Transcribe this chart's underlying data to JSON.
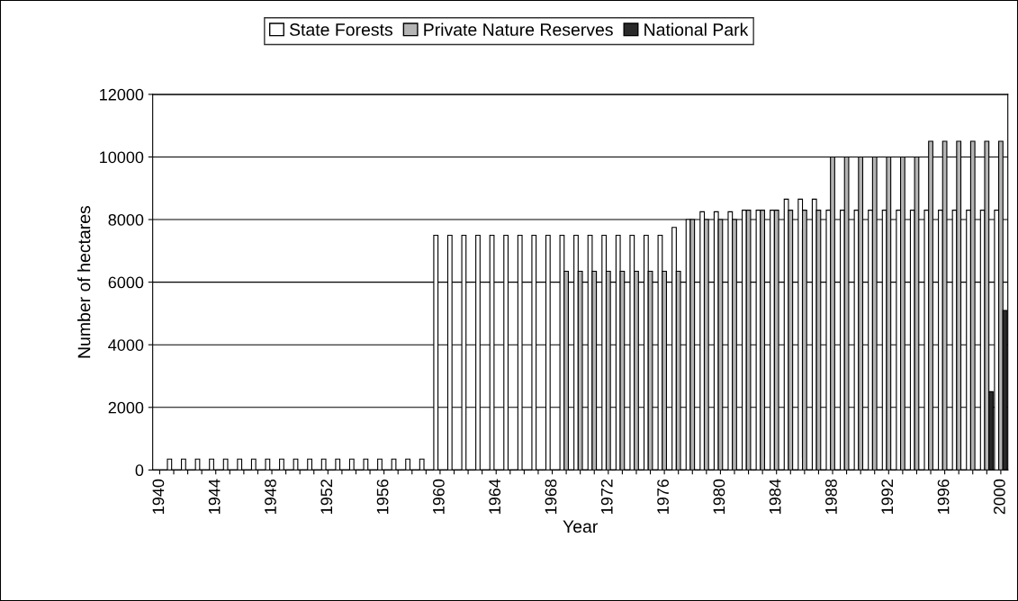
{
  "chart_data": {
    "type": "bar",
    "xlabel": "Year",
    "ylabel": "Number of hectares",
    "categories": [
      "1940",
      null,
      null,
      null,
      "1944",
      null,
      null,
      null,
      "1948",
      null,
      null,
      null,
      "1952",
      null,
      null,
      null,
      "1956",
      null,
      null,
      null,
      "1960",
      null,
      null,
      null,
      "1964",
      null,
      null,
      null,
      "1968",
      null,
      null,
      null,
      "1972",
      null,
      null,
      null,
      "1976",
      null,
      null,
      null,
      "1980",
      null,
      null,
      null,
      "1984",
      null,
      null,
      null,
      "1988",
      null,
      null,
      null,
      "1992",
      null,
      null,
      null,
      "1996",
      null,
      null,
      null,
      "2000"
    ],
    "series": [
      {
        "name": "State Forests",
        "color": "#ffffff",
        "values": [
          null,
          350,
          350,
          350,
          350,
          350,
          350,
          350,
          350,
          350,
          350,
          350,
          350,
          350,
          350,
          350,
          350,
          350,
          350,
          350,
          7500,
          7500,
          7500,
          7500,
          7500,
          7500,
          7500,
          7500,
          7500,
          7500,
          7500,
          7500,
          7500,
          7500,
          7500,
          7500,
          7500,
          7750,
          8000,
          8250,
          8250,
          8250,
          8300,
          8300,
          8300,
          8650,
          8650,
          8650,
          8300,
          8300,
          8300,
          8300,
          8300,
          8300,
          8300,
          8300,
          8300,
          8300,
          8300,
          8300,
          8300
        ]
      },
      {
        "name": "Private Nature Reserves",
        "color": "#b4b4b4",
        "values": [
          null,
          null,
          null,
          null,
          null,
          null,
          null,
          null,
          null,
          null,
          null,
          null,
          null,
          null,
          null,
          null,
          null,
          null,
          null,
          null,
          null,
          null,
          null,
          null,
          null,
          null,
          null,
          null,
          null,
          6350,
          6350,
          6350,
          6350,
          6350,
          6350,
          6350,
          6350,
          6350,
          8000,
          8000,
          8000,
          8000,
          8300,
          8300,
          8300,
          8300,
          8300,
          8300,
          10000,
          10000,
          10000,
          10000,
          10000,
          10000,
          10000,
          10500,
          10500,
          10500,
          10500,
          10500,
          10500
        ]
      },
      {
        "name": "National Park",
        "color": "#2a2a2a",
        "values": [
          null,
          null,
          null,
          null,
          null,
          null,
          null,
          null,
          null,
          null,
          null,
          null,
          null,
          null,
          null,
          null,
          null,
          null,
          null,
          null,
          null,
          null,
          null,
          null,
          null,
          null,
          null,
          null,
          null,
          null,
          null,
          null,
          null,
          null,
          null,
          null,
          null,
          null,
          null,
          null,
          null,
          null,
          null,
          null,
          null,
          null,
          null,
          null,
          null,
          null,
          null,
          null,
          null,
          null,
          null,
          null,
          null,
          null,
          null,
          2500,
          5100
        ]
      }
    ],
    "ylim": [
      0,
      12000
    ],
    "yticks": [
      0,
      2000,
      4000,
      6000,
      8000,
      10000,
      12000
    ],
    "grid": "y",
    "legend": "top"
  }
}
